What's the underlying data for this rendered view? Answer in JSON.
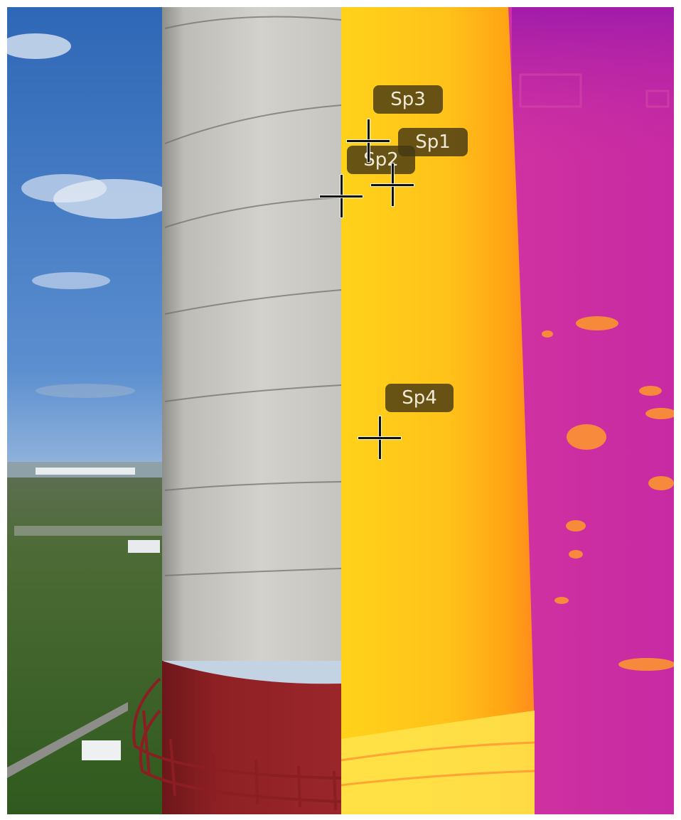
{
  "spot_labels": {
    "sp1": "Sp1",
    "sp2": "Sp2",
    "sp3": "Sp3",
    "sp4": "Sp4"
  },
  "palette": {
    "sky": "#3f78c4",
    "concrete": "#c9c8c4",
    "chimney_band": "#8e2024",
    "thermal_hot": "#ffd21a",
    "thermal_cold": "#c72aa3"
  }
}
